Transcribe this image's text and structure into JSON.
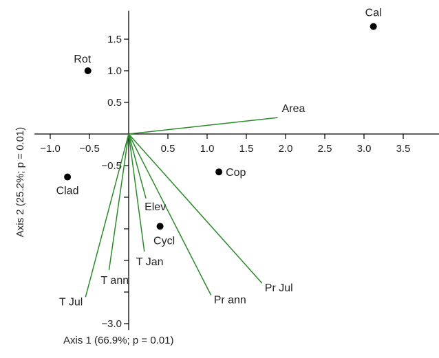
{
  "chart_data": {
    "type": "scatter",
    "title": "",
    "xlabel": "Axis 1 (66.9%; p = 0.01)",
    "ylabel": "Axis 2 (25.2%; p = 0.01)",
    "xlim": [
      -1.2,
      4.0
    ],
    "ylim": [
      -3.1,
      1.95
    ],
    "x_ticks": [
      {
        "value": -1.0,
        "label": "−1.0"
      },
      {
        "value": -0.5,
        "label": "−0.5"
      },
      {
        "value": 0.5,
        "label": "0.5"
      },
      {
        "value": 1.0,
        "label": "1.0"
      },
      {
        "value": 1.5,
        "label": "1.5"
      },
      {
        "value": 2.0,
        "label": "2.0"
      },
      {
        "value": 2.5,
        "label": "2.5"
      },
      {
        "value": 3.0,
        "label": "3.0"
      },
      {
        "value": 3.5,
        "label": "3.5"
      }
    ],
    "y_ticks": [
      {
        "value": 1.5,
        "label": "1.5"
      },
      {
        "value": 1.0,
        "label": "1.0"
      },
      {
        "value": 0.5,
        "label": "0.5"
      },
      {
        "value": -0.5,
        "label": "−0.5"
      },
      {
        "value": -1.0,
        "label": ""
      },
      {
        "value": -1.5,
        "label": ""
      },
      {
        "value": -2.0,
        "label": ""
      },
      {
        "value": -2.5,
        "label": ""
      },
      {
        "value": -3.0,
        "label": "−3.0"
      }
    ],
    "points": [
      {
        "label": "Cal",
        "x": 3.12,
        "y": 1.7
      },
      {
        "label": "Rot",
        "x": -0.52,
        "y": 1.0
      },
      {
        "label": "Clad",
        "x": -0.78,
        "y": -0.68
      },
      {
        "label": "Cop",
        "x": 1.15,
        "y": -0.6
      },
      {
        "label": "Cycl",
        "x": 0.4,
        "y": -1.46
      }
    ],
    "vectors": [
      {
        "label": "Area",
        "x": 1.9,
        "y": 0.26
      },
      {
        "label": "Elev",
        "x": 0.22,
        "y": -1.02
      },
      {
        "label": "T Jan",
        "x": 0.2,
        "y": -1.86
      },
      {
        "label": "T ann",
        "x": -0.25,
        "y": -2.15
      },
      {
        "label": "T Jul",
        "x": -0.55,
        "y": -2.58
      },
      {
        "label": "Pr ann",
        "x": 1.05,
        "y": -2.55
      },
      {
        "label": "Pr Jul",
        "x": 1.7,
        "y": -2.36
      }
    ],
    "colors": {
      "points": "#000000",
      "vectors": "#2a8a2a",
      "axes": "#000000"
    },
    "grid": false,
    "legend": "none"
  }
}
